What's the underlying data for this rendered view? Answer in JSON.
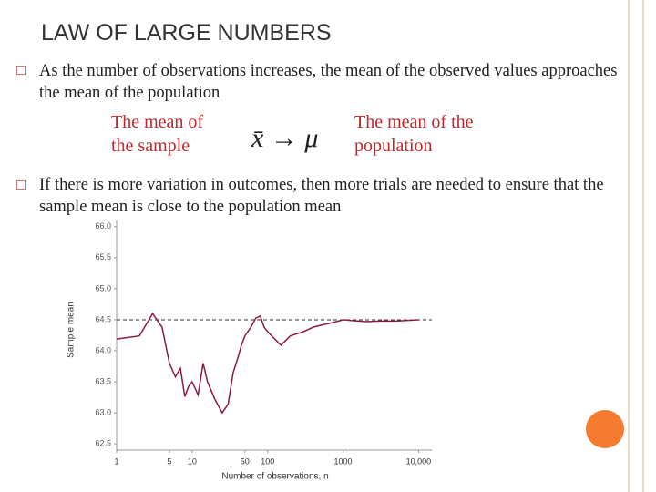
{
  "slide": {
    "title": "LAW OF LARGE NUMBERS",
    "bullets": [
      "As the number of observations increases, the mean of the observed values approaches the mean of the population",
      "If there is more variation in outcomes, then more trials are needed to ensure that the sample mean is close to the population mean"
    ],
    "left_caption": "The mean of the sample",
    "formula": "x̄ → μ",
    "right_caption": "The mean of the population"
  },
  "chart_data": {
    "type": "line",
    "xlabel": "Number of observations, n",
    "ylabel": "Sample mean",
    "xscale": "log",
    "x": [
      1,
      2,
      3,
      4,
      5,
      6,
      7,
      8,
      9,
      10,
      12,
      14,
      16,
      20,
      25,
      30,
      35,
      40,
      45,
      50,
      60,
      70,
      80,
      90,
      100,
      120,
      150,
      200,
      300,
      400,
      500,
      700,
      1000,
      2000,
      3000,
      5000,
      10000
    ],
    "series": [
      {
        "name": "Sample mean",
        "color": "#8b1a4a",
        "values": [
          64.19,
          64.24,
          64.6,
          64.38,
          63.8,
          63.58,
          63.72,
          63.26,
          63.43,
          63.5,
          63.29,
          63.8,
          63.5,
          63.22,
          63.0,
          63.14,
          63.65,
          63.87,
          64.09,
          64.24,
          64.38,
          64.53,
          64.56,
          64.38,
          64.31,
          64.21,
          64.09,
          64.24,
          64.31,
          64.38,
          64.41,
          64.45,
          64.5,
          64.47,
          64.48,
          64.48,
          64.5
        ]
      }
    ],
    "reference_line": 64.5,
    "xlim": [
      1,
      15000
    ],
    "xticks": [
      1,
      5,
      10,
      50,
      100,
      1000,
      {
        "value": 10000,
        "label": "10,000"
      }
    ],
    "ylim": [
      62.4,
      66.1
    ],
    "yticks": [
      {
        "value": 62.5,
        "label": "62.5"
      },
      {
        "value": 63,
        "label": "63.0"
      },
      63.5,
      {
        "value": 64,
        "label": "64.0"
      },
      64.5,
      {
        "value": 65,
        "label": "65.0"
      },
      65.5,
      {
        "value": 66,
        "label": "66.0"
      }
    ]
  }
}
